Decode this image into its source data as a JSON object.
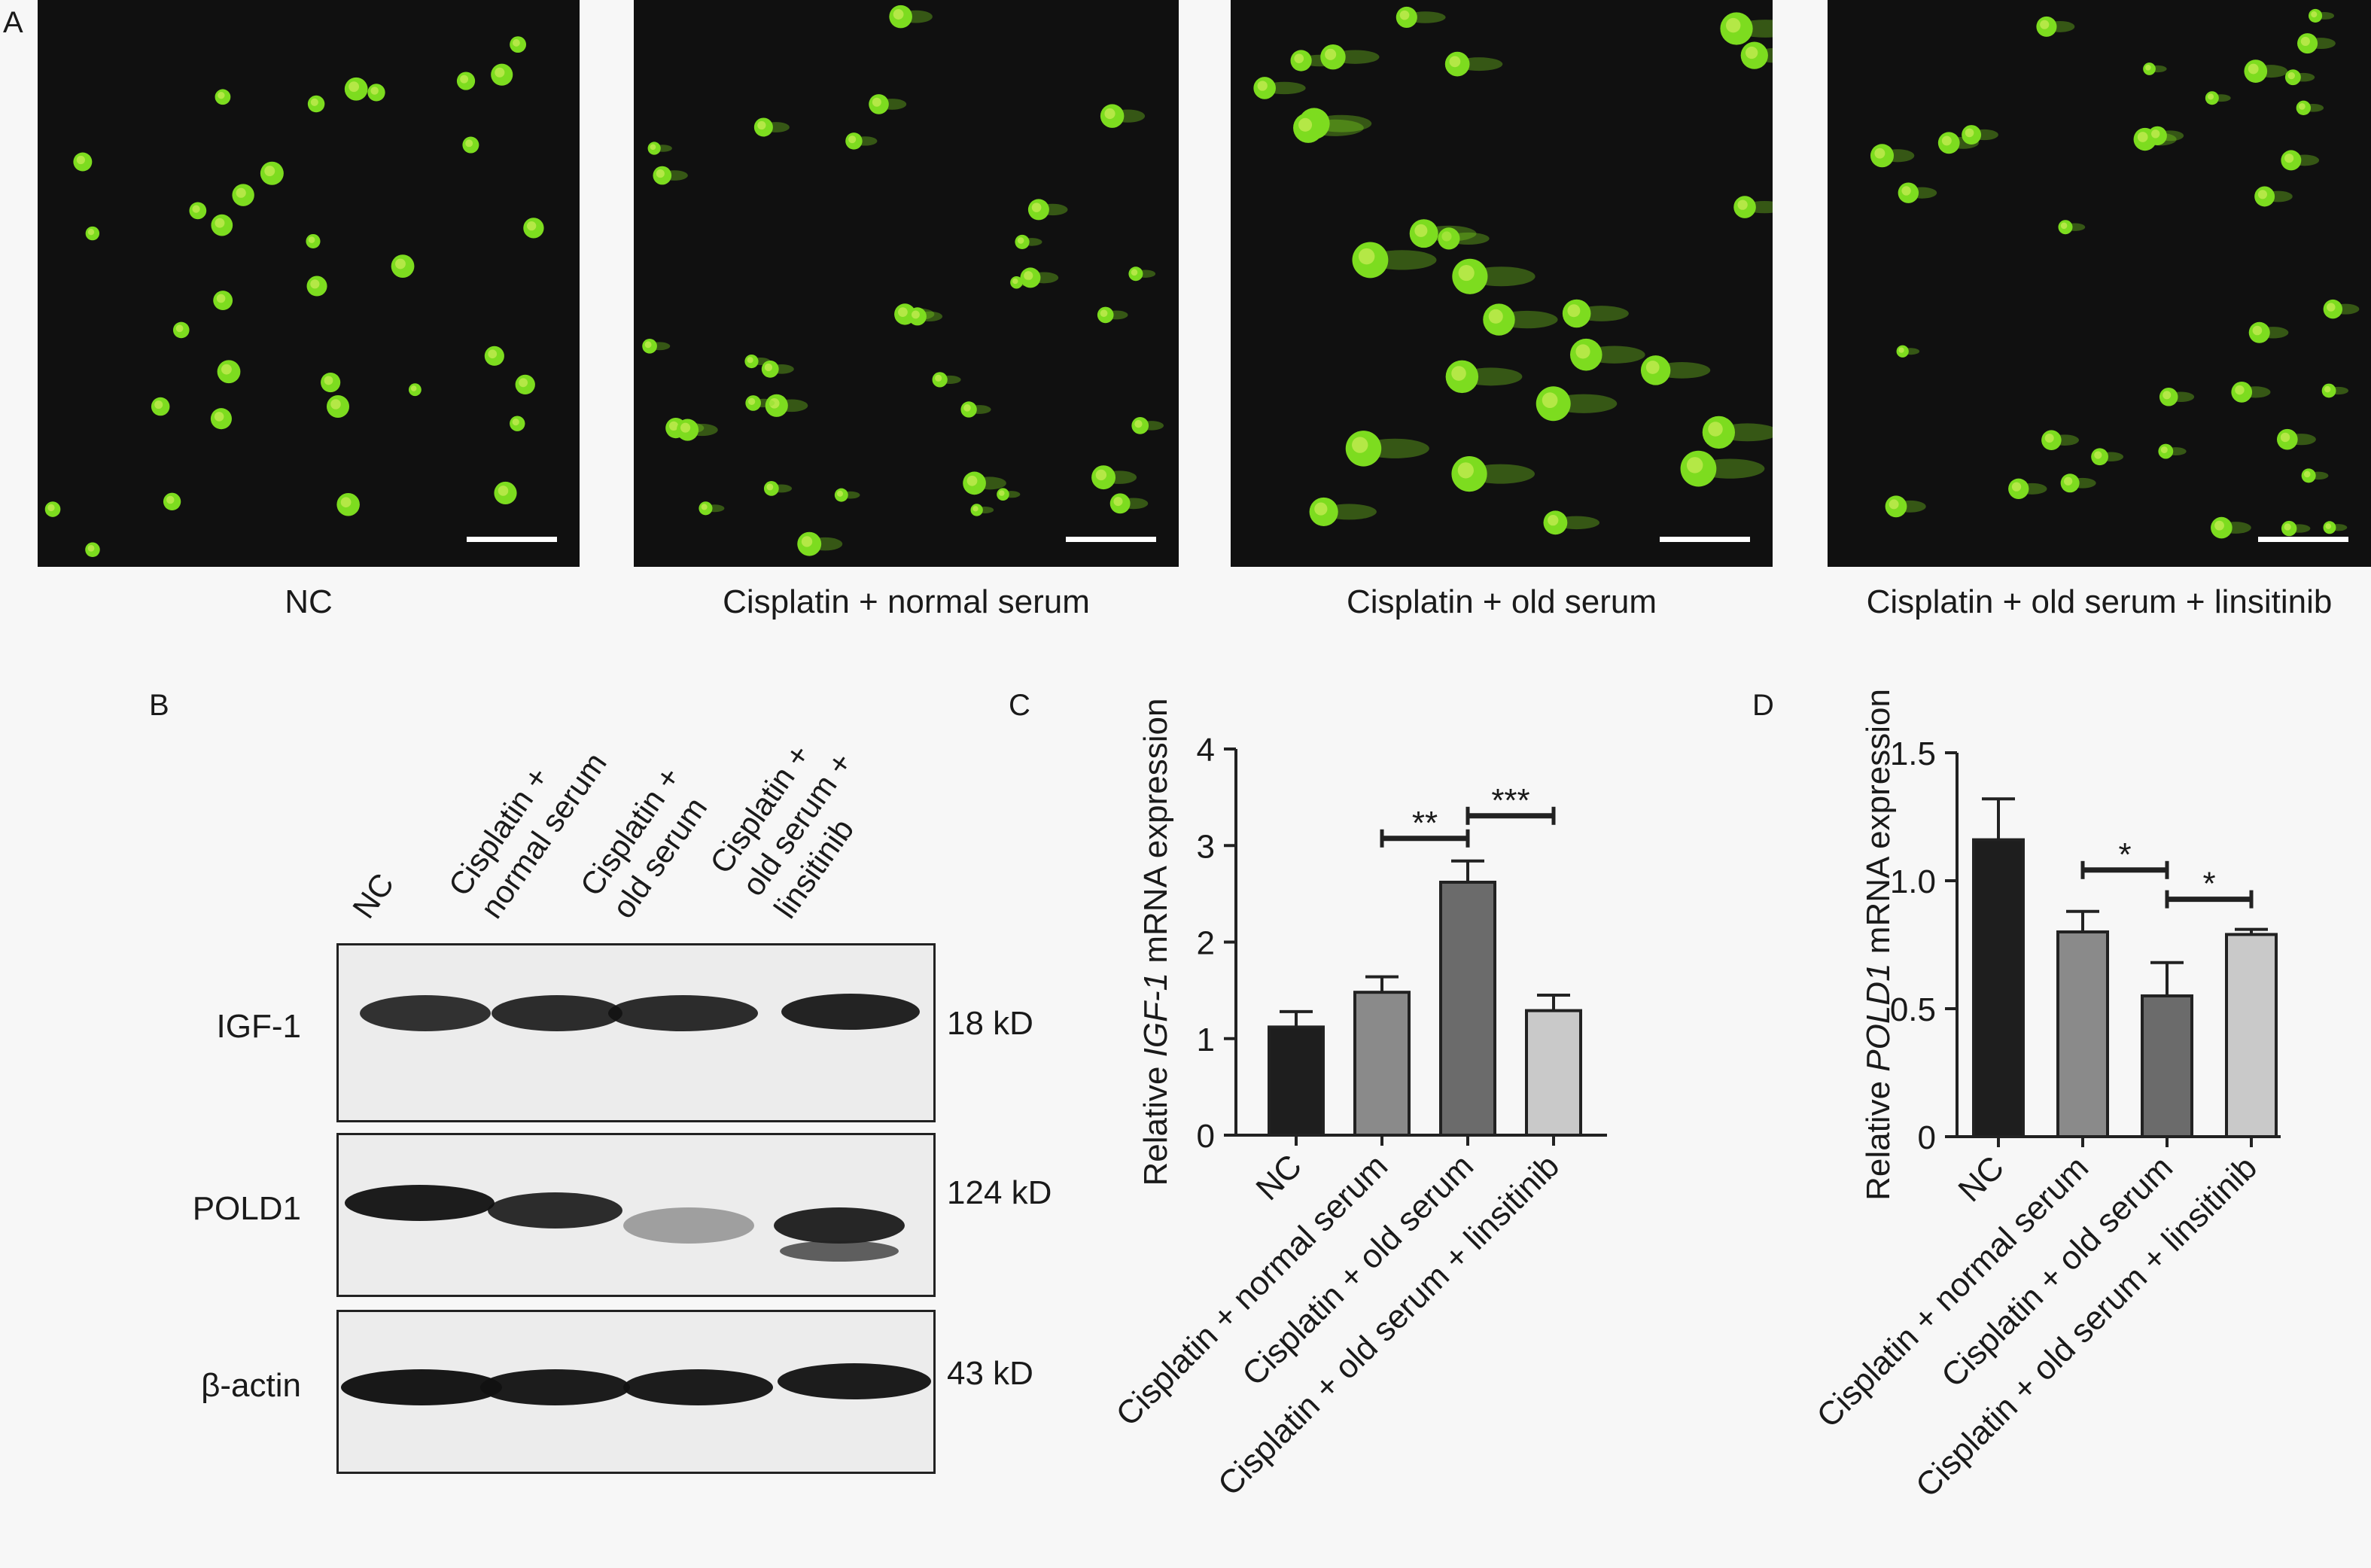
{
  "panelA": {
    "letter": "A",
    "conditions": [
      "NC",
      "Cisplatin + normal serum",
      "Cisplatin + old serum",
      "Cisplatin + old serum + linsitinib"
    ],
    "fluorescence_color": "#7ddc1f"
  },
  "panelB": {
    "letter": "B",
    "lanes": [
      "NC",
      "Cisplatin +\nnormal serum",
      "Cisplatin +\nold serum",
      "Cisplatin +\nold serum +\nlinsitinib"
    ],
    "rows": [
      {
        "protein": "IGF-1",
        "size": "18 kD"
      },
      {
        "protein": "POLD1",
        "size": "124 kD"
      },
      {
        "protein": "β-actin",
        "size": "43 kD"
      }
    ]
  },
  "chart_data": [
    {
      "type": "bar",
      "panel": "C",
      "ylabel_prefix": "Relative",
      "ylabel_gene": "IGF-1",
      "ylabel_suffix": "mRNA expression",
      "categories": [
        "NC",
        "Cisplatin + normal serum",
        "Cisplatin + old serum",
        "Cisplatin + old serum + linsitinib"
      ],
      "values": [
        1.12,
        1.48,
        2.62,
        1.29
      ],
      "errors": [
        0.16,
        0.16,
        0.22,
        0.16
      ],
      "colors": [
        "#1e1e1e",
        "#8a8a8a",
        "#6b6b6b",
        "#c9c9c9"
      ],
      "ylim": [
        0,
        4
      ],
      "yticks": [
        "0",
        "1",
        "2",
        "3",
        "4"
      ],
      "significance": [
        {
          "from": 2,
          "to": 1,
          "label": "**"
        },
        {
          "from": 2,
          "to": 3,
          "label": "***"
        }
      ]
    },
    {
      "type": "bar",
      "panel": "D",
      "ylabel_prefix": "Relative",
      "ylabel_gene": "POLD1",
      "ylabel_suffix": "mRNA expression",
      "categories": [
        "NC",
        "Cisplatin + normal serum",
        "Cisplatin + old serum",
        "Cisplatin + old serum + linsitinib"
      ],
      "values": [
        1.16,
        0.8,
        0.55,
        0.79
      ],
      "errors": [
        0.16,
        0.08,
        0.13,
        0.02
      ],
      "colors": [
        "#1e1e1e",
        "#8a8a8a",
        "#6b6b6b",
        "#c9c9c9"
      ],
      "ylim": [
        0,
        1.5
      ],
      "yticks": [
        "0",
        "0.5",
        "1.0",
        "1.5"
      ],
      "significance": [
        {
          "from": 1,
          "to": 2,
          "label": "*"
        },
        {
          "from": 2,
          "to": 3,
          "label": "*"
        }
      ]
    }
  ]
}
